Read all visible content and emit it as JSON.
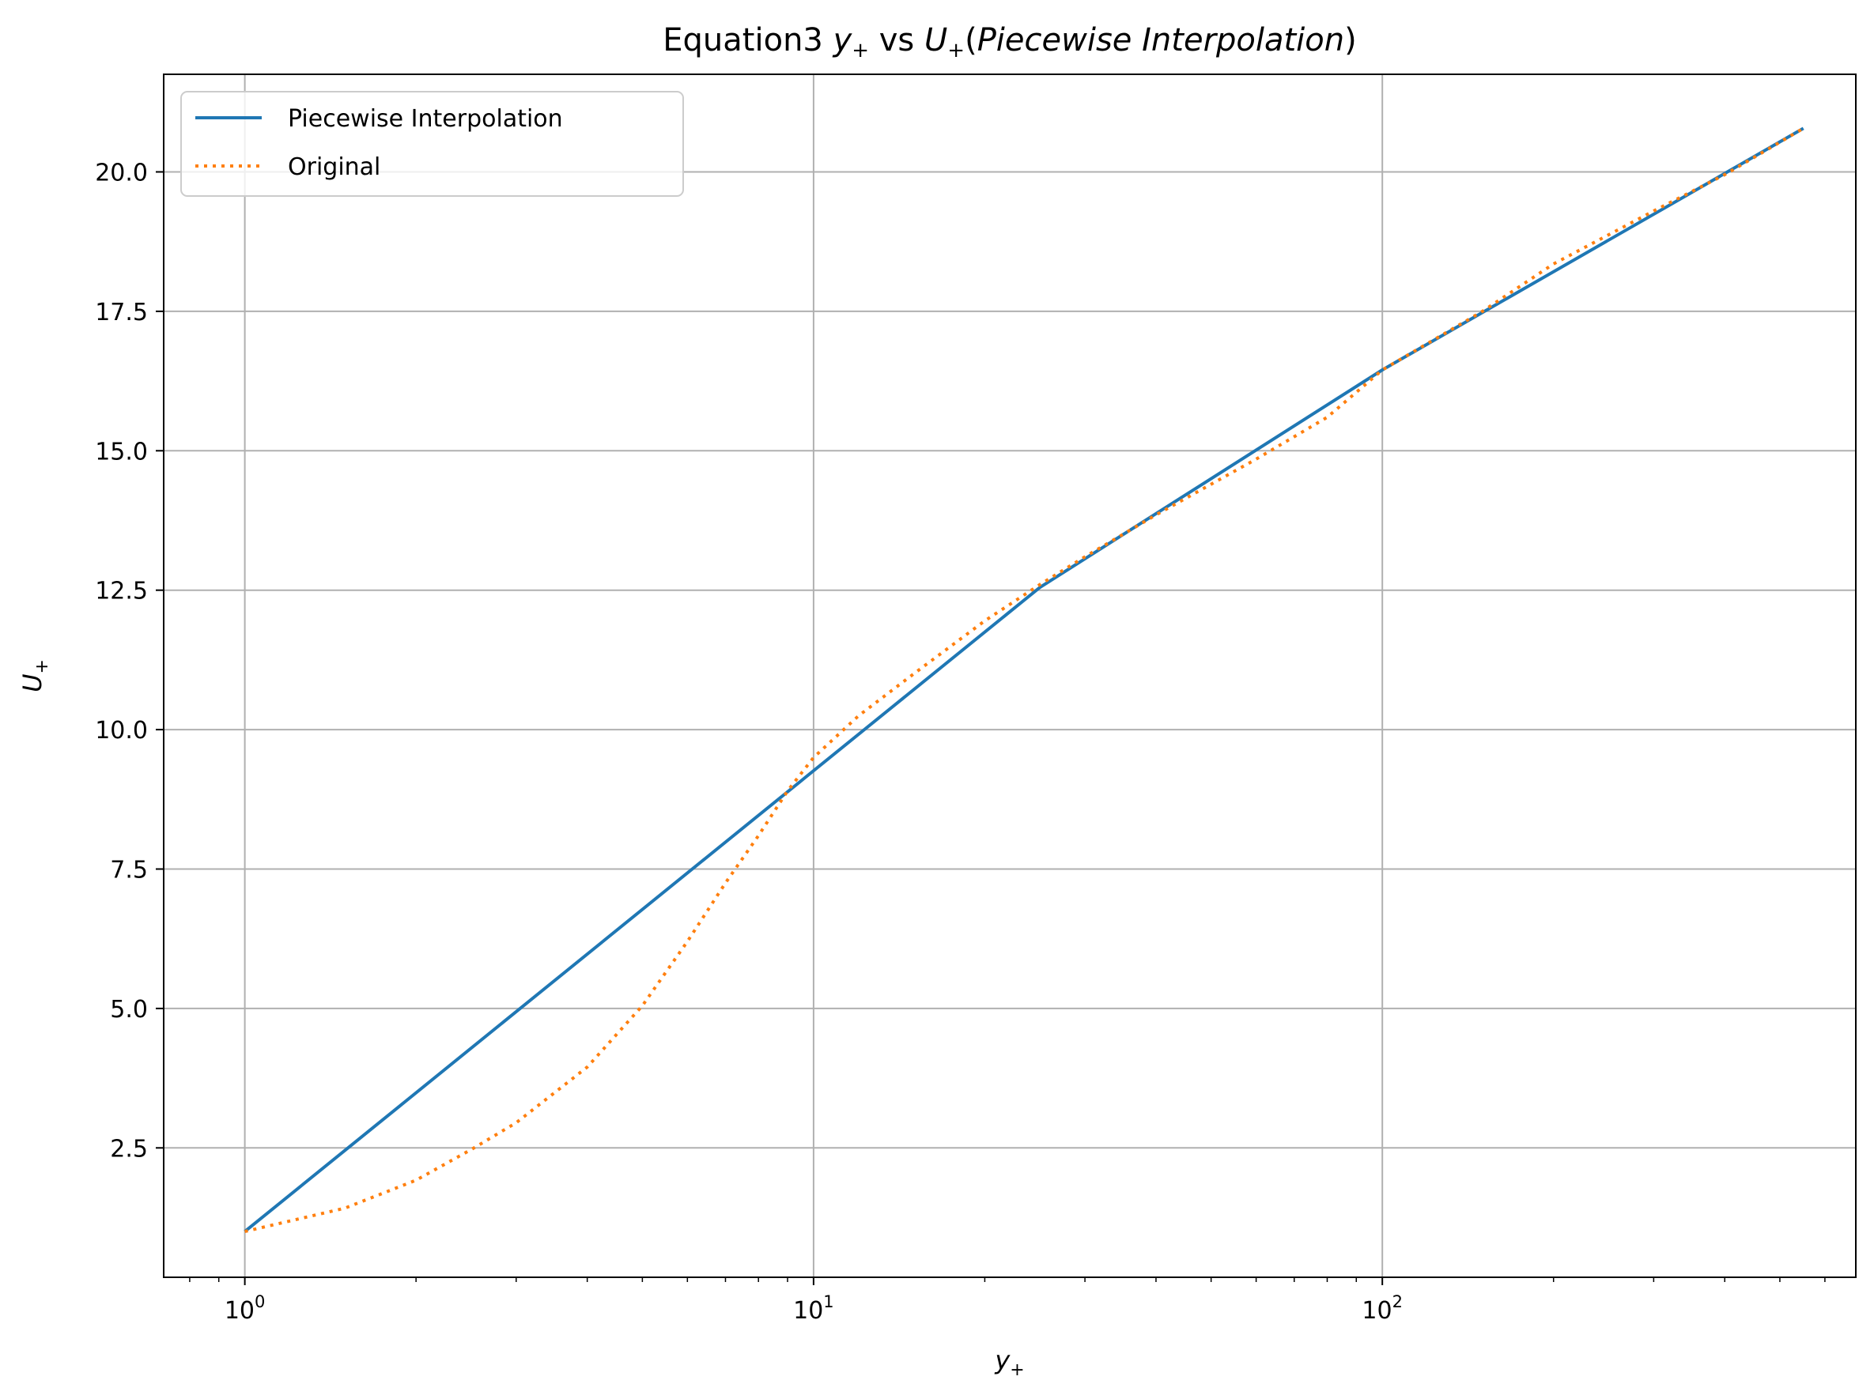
{
  "chart_data": {
    "type": "line",
    "title": {
      "prefix": "Equation3 ",
      "y_symbol": "y",
      "vs": " vs ",
      "u_symbol": "U",
      "subscript": "+",
      "open_paren": "(",
      "italic_part": "Piecewise Interpolation",
      "close_paren": ")"
    },
    "xlabel": {
      "symbol": "y",
      "subscript": "+"
    },
    "ylabel": {
      "symbol": "U",
      "subscript": "+"
    },
    "x_scale": "log",
    "xlim": [
      0.72,
      680
    ],
    "ylim": [
      0.18,
      21.75
    ],
    "x_major_ticks": [
      {
        "value": 1,
        "base": "10",
        "exp": "0"
      },
      {
        "value": 10,
        "base": "10",
        "exp": "1"
      },
      {
        "value": 100,
        "base": "10",
        "exp": "2"
      }
    ],
    "y_ticks": [
      2.5,
      5.0,
      7.5,
      10.0,
      12.5,
      15.0,
      17.5,
      20.0
    ],
    "y_tick_labels": [
      "2.5",
      "5.0",
      "7.5",
      "10.0",
      "12.5",
      "15.0",
      "17.5",
      "20.0"
    ],
    "grid": true,
    "legend_position": "upper-left",
    "series": [
      {
        "name": "Piecewise Interpolation",
        "color": "#1f77b4",
        "style": "solid",
        "x": [
          1,
          25,
          100,
          550
        ],
        "y": [
          1.0,
          12.55,
          16.45,
          20.78
        ]
      },
      {
        "name": "Original",
        "color": "#ff7f0e",
        "style": "dotted",
        "x": [
          1,
          1.5,
          2,
          2.5,
          3,
          4,
          5,
          6,
          7,
          8,
          9,
          10,
          12,
          15,
          20,
          25,
          30,
          40,
          50,
          60,
          80,
          100,
          150,
          200,
          300,
          400,
          550
        ],
        "y": [
          1.0,
          1.42,
          1.92,
          2.47,
          2.95,
          3.95,
          5.05,
          6.2,
          7.25,
          8.1,
          8.9,
          9.5,
          10.25,
          11.0,
          11.95,
          12.6,
          13.1,
          13.85,
          14.4,
          14.85,
          15.6,
          16.45,
          17.5,
          18.35,
          19.3,
          19.95,
          20.78
        ]
      }
    ]
  }
}
